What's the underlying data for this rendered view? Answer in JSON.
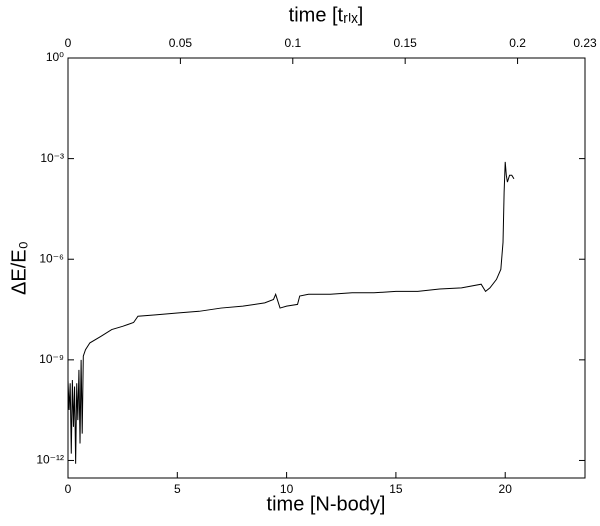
{
  "chart_data": {
    "type": "line",
    "xlabel": "time [N-body]",
    "x2label": "time [tᵣₗₓ]",
    "ylabel": "ΔE/E₀",
    "log_y": true,
    "color": "#000000",
    "xlim": [
      0,
      23.65
    ],
    "xticks": [
      0,
      5,
      10,
      15,
      20
    ],
    "x2lim": [
      0,
      0.23
    ],
    "x2ticks": [
      0,
      0.05,
      0.1,
      0.15,
      0.2,
      0.23
    ],
    "ylim": [
      3e-13,
      1
    ],
    "yticks": [
      {
        "value": 1,
        "label": "10⁰"
      },
      {
        "value": 0.001,
        "label": "10⁻³"
      },
      {
        "value": 1e-06,
        "label": "10⁻⁶"
      },
      {
        "value": 1e-09,
        "label": "10⁻⁹"
      },
      {
        "value": 1e-12,
        "label": "10⁻¹²"
      }
    ],
    "x": [
      0,
      0.05,
      0.1,
      0.15,
      0.2,
      0.25,
      0.3,
      0.35,
      0.4,
      0.45,
      0.5,
      0.55,
      0.6,
      0.65,
      0.7,
      0.8,
      1,
      1.5,
      2,
      2.5,
      3,
      3.2,
      4,
      5,
      6,
      7,
      8,
      9,
      9.4,
      9.5,
      9.7,
      10,
      10.5,
      10.6,
      11,
      12,
      13,
      14,
      15,
      16,
      17,
      18,
      18.9,
      19.1,
      19.3,
      19.6,
      19.8,
      19.9,
      19.95,
      20,
      20.05,
      20.1,
      20.2,
      20.3,
      20.4
    ],
    "values": [
      2.5e-10,
      3.2e-11,
      2e-10,
      1.6e-12,
      2.5e-10,
      1e-11,
      1.6e-10,
      8e-13,
      2e-10,
      1.6e-11,
      5e-10,
      3.2e-12,
      1e-09,
      6.3e-12,
      1.3e-09,
      2e-09,
      3.2e-09,
      5e-09,
      8e-09,
      1e-08,
      1.3e-08,
      2e-08,
      2.2e-08,
      2.5e-08,
      2.8e-08,
      3.5e-08,
      4e-08,
      5e-08,
      6.3e-08,
      9e-08,
      3.5e-08,
      4e-08,
      4.5e-08,
      8e-08,
      9e-08,
      9e-08,
      1e-07,
      1e-07,
      1.1e-07,
      1.1e-07,
      1.3e-07,
      1.4e-07,
      1.8e-07,
      1.1e-07,
      1.4e-07,
      2.5e-07,
      5e-07,
      3.2e-06,
      0.0001,
      0.0008,
      0.00032,
      0.0002,
      0.00032,
      0.00032,
      0.00025
    ]
  }
}
